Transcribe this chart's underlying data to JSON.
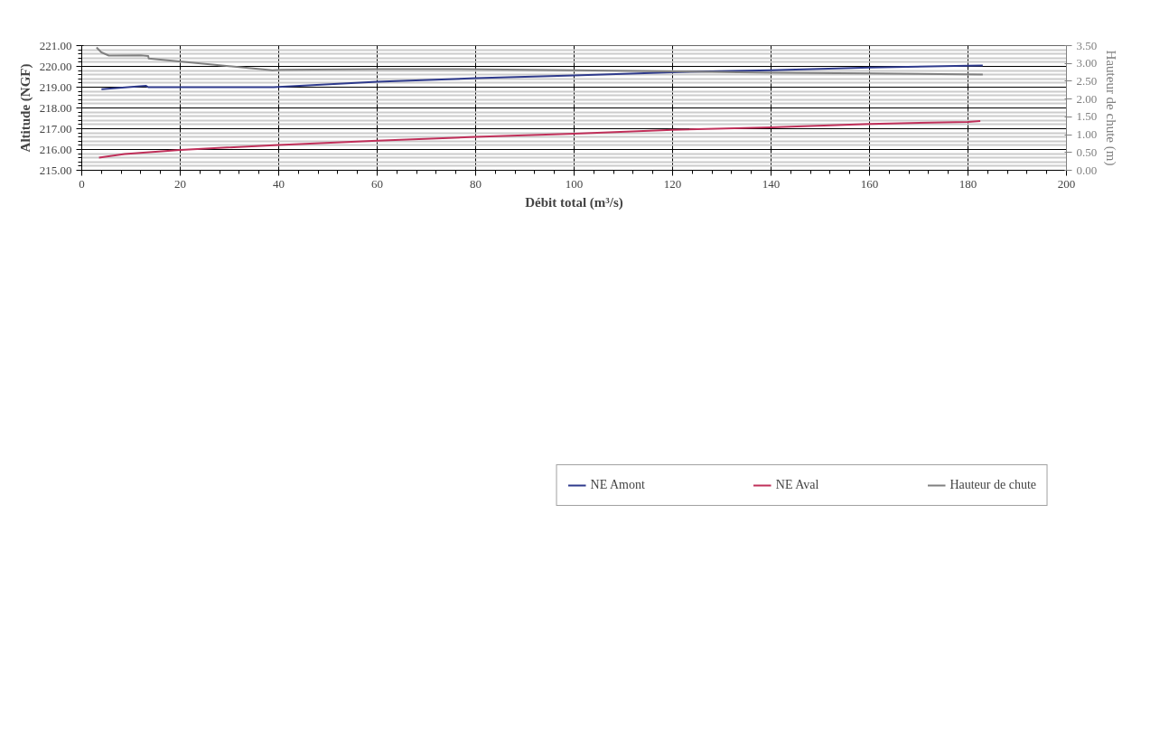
{
  "chart_data": {
    "type": "line",
    "xlabel": "Débit total (m³/s)",
    "ylabel": "Altitude (NGF)",
    "y2label": "Hauteur de chute (m)",
    "xlim": [
      0,
      200
    ],
    "xticks": [
      0,
      20,
      40,
      60,
      80,
      100,
      120,
      140,
      160,
      180,
      200
    ],
    "ylim": [
      215,
      221
    ],
    "yticks": [
      {
        "value": 215,
        "label": "215.00"
      },
      {
        "value": 216,
        "label": "216.00"
      },
      {
        "value": 217,
        "label": "217.00"
      },
      {
        "value": 218,
        "label": "218.00"
      },
      {
        "value": 219,
        "label": "219.00"
      },
      {
        "value": 220,
        "label": "220.00"
      },
      {
        "value": 221,
        "label": "221.00"
      }
    ],
    "y2lim": [
      0,
      3.5
    ],
    "y2ticks": [
      {
        "value": 0,
        "label": "0.00"
      },
      {
        "value": 0.5,
        "label": "0.50"
      },
      {
        "value": 1,
        "label": "1.00"
      },
      {
        "value": 1.5,
        "label": "1.50"
      },
      {
        "value": 2,
        "label": "2.00"
      },
      {
        "value": 2.5,
        "label": "2.50"
      },
      {
        "value": 3,
        "label": "3.00"
      },
      {
        "value": 3.5,
        "label": "3.50"
      }
    ],
    "grid": true,
    "legend": "bottom",
    "marker": "none",
    "line_style": "solid",
    "series": [
      {
        "name": "NE Amont",
        "color": "#2e3a8c",
        "x": [
          4,
          13,
          13.5,
          39,
          60,
          80,
          100,
          120,
          140,
          160,
          180,
          183
        ],
        "values": [
          218.9,
          219.07,
          219.0,
          219.0,
          219.26,
          219.43,
          219.57,
          219.72,
          219.82,
          219.95,
          220.03,
          220.04
        ]
      },
      {
        "name": "NE Aval",
        "color": "#c0305a",
        "x": [
          3.5,
          8.7,
          20,
          40,
          60,
          80,
          100,
          120,
          140,
          160,
          180,
          182.5
        ],
        "values": [
          215.61,
          215.78,
          215.98,
          216.22,
          216.42,
          216.61,
          216.76,
          216.95,
          217.07,
          217.23,
          217.33,
          217.37
        ]
      },
      {
        "name": "Hauteur de chute",
        "color": "#808080",
        "axis": "y2",
        "x": [
          3,
          4,
          5.5,
          12,
          13.5,
          13.6,
          38.7,
          40.5,
          60.7,
          76.5,
          100,
          120,
          140,
          160,
          183
        ],
        "values": [
          3.45,
          3.31,
          3.22,
          3.23,
          3.21,
          3.14,
          2.81,
          2.82,
          2.84,
          2.84,
          2.81,
          2.78,
          2.74,
          2.72,
          2.69
        ]
      }
    ]
  }
}
